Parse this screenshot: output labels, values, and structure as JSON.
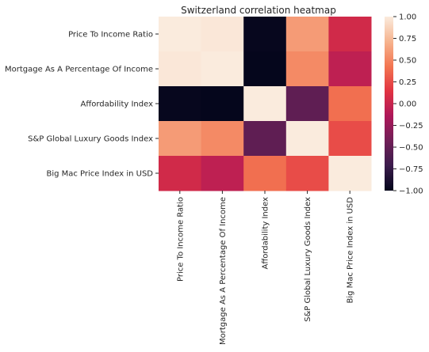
{
  "chart_data": {
    "type": "heatmap",
    "title": "Switzerland correlation heatmap",
    "rows": [
      "Price To Income Ratio",
      "Mortgage As A Percentage Of Income",
      "Affordability Index",
      "S&P Global Luxury Goods Index",
      "Big Mac Price Index in USD"
    ],
    "columns": [
      "Price To Income Ratio",
      "Mortgage As A Percentage Of Income",
      "Affordability Index",
      "S&P Global Luxury Goods Index",
      "Big Mac Price Index in USD"
    ],
    "values": [
      [
        1.0,
        0.98,
        -0.98,
        0.6,
        0.05
      ],
      [
        0.98,
        1.0,
        -0.99,
        0.52,
        -0.05
      ],
      [
        -0.98,
        -0.99,
        1.0,
        -0.52,
        0.4
      ],
      [
        0.6,
        0.52,
        -0.52,
        1.0,
        0.25
      ],
      [
        0.05,
        -0.05,
        0.4,
        0.25,
        1.0
      ]
    ],
    "colorbar": {
      "vmin": -1.0,
      "vmax": 1.0,
      "ticks": [
        "1.00",
        "0.75",
        "0.50",
        "0.25",
        "0.00",
        "−0.25",
        "−0.50",
        "−0.75",
        "−1.00"
      ],
      "tick_values": [
        1.0,
        0.75,
        0.5,
        0.25,
        0.0,
        -0.25,
        -0.5,
        -0.75,
        -1.0
      ],
      "colormap": "rocket",
      "colormap_stops": [
        "#03051a",
        "#3b1c4c",
        "#701f57",
        "#ad1759",
        "#e13342",
        "#f37651",
        "#f6b48f",
        "#faebdd"
      ]
    }
  }
}
